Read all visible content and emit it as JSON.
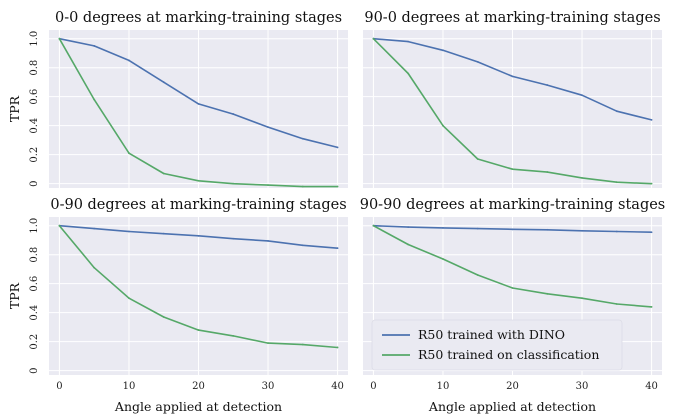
{
  "chart_data": [
    {
      "type": "line",
      "title": "0-0 degrees at marking-training stages",
      "xlabel": "",
      "ylabel": "TPR",
      "x": [
        0,
        5,
        10,
        15,
        20,
        25,
        30,
        35,
        40
      ],
      "xlim": [
        -1.5,
        41.5
      ],
      "ylim": [
        -0.03,
        1.06
      ],
      "xticks": [
        0,
        10,
        20,
        30,
        40
      ],
      "yticks": [
        0,
        0.2,
        0.4,
        0.6,
        0.8,
        1.0
      ],
      "yticklabels": [
        "0",
        "0.2",
        "0.4",
        "0.6",
        "0.8",
        "1.0"
      ],
      "grid": true,
      "series": [
        {
          "name": "R50 trained with DINO",
          "color": "#4c72b0",
          "values": [
            1.0,
            0.95,
            0.85,
            0.7,
            0.55,
            0.48,
            0.39,
            0.31,
            0.25
          ]
        },
        {
          "name": "R50 trained on classification",
          "color": "#55a868",
          "values": [
            1.0,
            0.58,
            0.21,
            0.07,
            0.02,
            0.0,
            -0.01,
            -0.02,
            -0.02
          ]
        }
      ]
    },
    {
      "type": "line",
      "title": "90-0 degrees at marking-training stages",
      "xlabel": "",
      "ylabel": "",
      "x": [
        0,
        5,
        10,
        15,
        20,
        25,
        30,
        35,
        40
      ],
      "xlim": [
        -1.5,
        41.5
      ],
      "ylim": [
        -0.03,
        1.06
      ],
      "xticks": [
        0,
        10,
        20,
        30,
        40
      ],
      "yticks": [
        0,
        0.2,
        0.4,
        0.6,
        0.8,
        1.0
      ],
      "grid": true,
      "series": [
        {
          "name": "R50 trained with DINO",
          "color": "#4c72b0",
          "values": [
            1.0,
            0.98,
            0.92,
            0.84,
            0.74,
            0.68,
            0.61,
            0.5,
            0.44
          ]
        },
        {
          "name": "R50 trained on classification",
          "color": "#55a868",
          "values": [
            1.0,
            0.76,
            0.4,
            0.17,
            0.1,
            0.08,
            0.04,
            0.01,
            0.0
          ]
        }
      ]
    },
    {
      "type": "line",
      "title": "0-90 degrees at marking-training stages",
      "xlabel": "Angle applied at detection",
      "ylabel": "TPR",
      "x": [
        0,
        5,
        10,
        15,
        20,
        25,
        30,
        35,
        40
      ],
      "xlim": [
        -1.5,
        41.5
      ],
      "ylim": [
        -0.03,
        1.06
      ],
      "xticks": [
        0,
        10,
        20,
        30,
        40
      ],
      "yticks": [
        0,
        0.2,
        0.4,
        0.6,
        0.8,
        1.0
      ],
      "yticklabels": [
        "0",
        "0.2",
        "0.4",
        "0.6",
        "0.8",
        "1.0"
      ],
      "grid": true,
      "series": [
        {
          "name": "R50 trained with DINO",
          "color": "#4c72b0",
          "values": [
            1.0,
            0.98,
            0.96,
            0.945,
            0.93,
            0.91,
            0.895,
            0.865,
            0.845
          ]
        },
        {
          "name": "R50 trained on classification",
          "color": "#55a868",
          "values": [
            1.0,
            0.71,
            0.5,
            0.37,
            0.28,
            0.24,
            0.19,
            0.18,
            0.16
          ]
        }
      ]
    },
    {
      "type": "line",
      "title": "90-90 degrees at marking-training stages",
      "xlabel": "Angle applied at detection",
      "ylabel": "",
      "x": [
        0,
        5,
        10,
        15,
        20,
        25,
        30,
        35,
        40
      ],
      "xlim": [
        -1.5,
        41.5
      ],
      "ylim": [
        -0.03,
        1.06
      ],
      "xticks": [
        0,
        10,
        20,
        30,
        40
      ],
      "yticks": [
        0,
        0.2,
        0.4,
        0.6,
        0.8,
        1.0
      ],
      "grid": true,
      "legend": "lower-left",
      "series": [
        {
          "name": "R50 trained with DINO",
          "color": "#4c72b0",
          "values": [
            1.0,
            0.99,
            0.985,
            0.98,
            0.975,
            0.972,
            0.965,
            0.96,
            0.955
          ]
        },
        {
          "name": "R50 trained on classification",
          "color": "#55a868",
          "values": [
            1.0,
            0.87,
            0.77,
            0.66,
            0.57,
            0.53,
            0.5,
            0.46,
            0.44
          ]
        }
      ]
    }
  ],
  "style": {
    "panel_background": "#eaeaf2",
    "grid_color": "#ffffff"
  }
}
